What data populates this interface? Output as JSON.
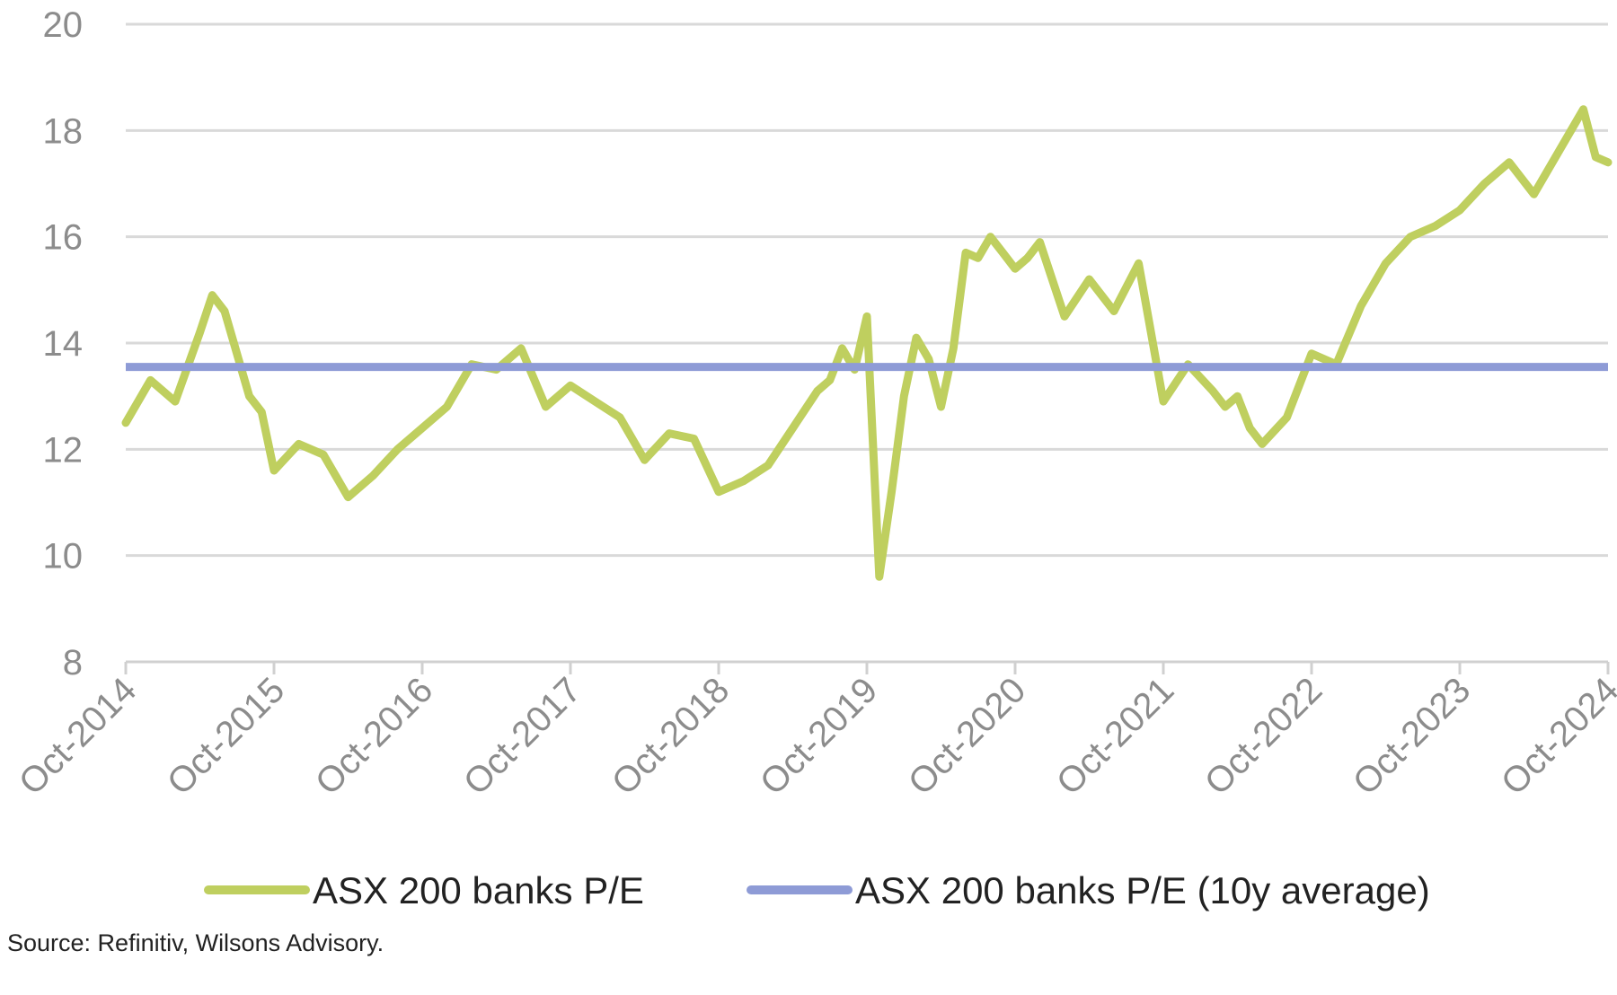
{
  "chart_data": {
    "type": "line",
    "x_dates": [
      "Oct-2014",
      "Dec-2014",
      "Feb-2015",
      "Apr-2015",
      "May-2015",
      "Jun-2015",
      "Aug-2015",
      "Sep-2015",
      "Oct-2015",
      "Dec-2015",
      "Feb-2016",
      "Apr-2016",
      "Jun-2016",
      "Aug-2016",
      "Oct-2016",
      "Dec-2016",
      "Feb-2017",
      "Apr-2017",
      "Jun-2017",
      "Aug-2017",
      "Oct-2017",
      "Dec-2017",
      "Feb-2018",
      "Apr-2018",
      "Jun-2018",
      "Aug-2018",
      "Oct-2018",
      "Dec-2018",
      "Feb-2019",
      "Apr-2019",
      "Jun-2019",
      "Jul-2019",
      "Aug-2019",
      "Sep-2019",
      "Oct-2019",
      "Nov-2019",
      "Dec-2019",
      "Jan-2020",
      "Feb-2020",
      "Mar-2020",
      "Apr-2020",
      "May-2020",
      "Jun-2020",
      "Jul-2020",
      "Aug-2020",
      "Sep-2020",
      "Oct-2020",
      "Nov-2020",
      "Dec-2020",
      "Feb-2021",
      "Apr-2021",
      "Jun-2021",
      "Aug-2021",
      "Oct-2021",
      "Dec-2021",
      "Feb-2022",
      "Mar-2022",
      "Apr-2022",
      "May-2022",
      "Jun-2022",
      "Aug-2022",
      "Oct-2022",
      "Dec-2022",
      "Feb-2023",
      "Apr-2023",
      "Jun-2023",
      "Aug-2023",
      "Oct-2023",
      "Dec-2023",
      "Feb-2024",
      "Apr-2024",
      "Jun-2024",
      "Aug-2024",
      "Sep-2024",
      "Oct-2024"
    ],
    "series": [
      {
        "name": "ASX 200 banks P/E",
        "color": "#bfcf5f",
        "values": [
          12.5,
          13.3,
          12.9,
          14.2,
          14.9,
          14.6,
          13.0,
          12.7,
          11.6,
          12.1,
          11.9,
          11.1,
          11.5,
          12.0,
          12.4,
          12.8,
          13.6,
          13.5,
          13.9,
          12.8,
          13.2,
          12.9,
          12.6,
          11.8,
          12.3,
          12.2,
          11.2,
          11.4,
          11.7,
          12.4,
          13.1,
          13.3,
          13.9,
          13.5,
          14.5,
          9.6,
          11.2,
          13.0,
          14.1,
          13.7,
          12.8,
          13.9,
          15.7,
          15.6,
          16.0,
          15.7,
          15.4,
          15.6,
          15.9,
          14.5,
          15.2,
          14.6,
          15.5,
          12.9,
          13.6,
          13.1,
          12.8,
          13.0,
          12.4,
          12.1,
          12.6,
          13.8,
          13.6,
          14.7,
          15.5,
          16.0,
          16.2,
          16.5,
          17.0,
          17.4,
          16.8,
          17.6,
          18.4,
          17.5,
          17.4
        ]
      },
      {
        "name": "ASX 200 banks P/E (10y average)",
        "color": "#8e9bd6",
        "values": [
          13.55,
          13.55
        ]
      }
    ],
    "avg_x_dates": [
      "Oct-2014",
      "Oct-2024"
    ],
    "x_ticks": [
      "Oct-2014",
      "Oct-2015",
      "Oct-2016",
      "Oct-2017",
      "Oct-2018",
      "Oct-2019",
      "Oct-2020",
      "Oct-2021",
      "Oct-2022",
      "Oct-2023",
      "Oct-2024"
    ],
    "y_ticks": [
      "8",
      "10",
      "12",
      "14",
      "16",
      "18",
      "20"
    ],
    "ylim": [
      8,
      20
    ],
    "grid": true,
    "legend_position": "bottom"
  },
  "source": "Source: Refinitiv, Wilsons Advisory."
}
